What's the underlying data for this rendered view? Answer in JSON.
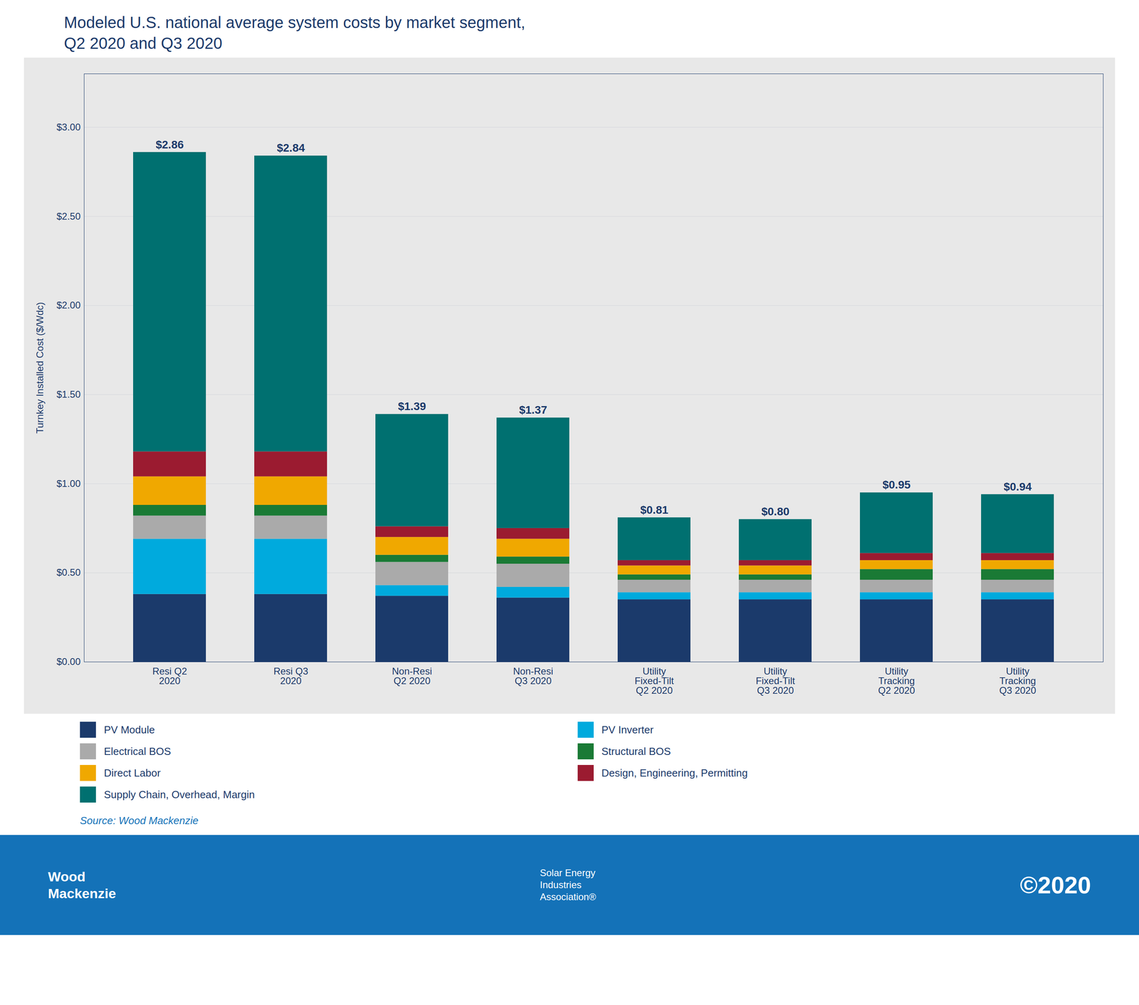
{
  "chart_data": {
    "type": "bar",
    "stacked": true,
    "title": "Modeled U.S. national average system costs by market segment,\nQ2 2020 and Q3 2020",
    "ylabel": "Turnkey Installed Cost ($/Wdc)",
    "categories": [
      "Resi Q2\n2020",
      "Resi Q3\n2020",
      "Non-Resi\nQ2 2020",
      "Non-Resi\nQ3 2020",
      "Utility\nFixed-Tilt\nQ2 2020",
      "Utility\nFixed-Tilt\nQ3 2020",
      "Utility\nTracking\nQ2 2020",
      "Utility\nTracking\nQ3 2020"
    ],
    "series": [
      {
        "name": "PV Module",
        "color": "#1b3a6b",
        "values": [
          0.38,
          0.38,
          0.37,
          0.36,
          0.35,
          0.35,
          0.35,
          0.35
        ]
      },
      {
        "name": "PV Inverter",
        "color": "#00aadd",
        "values": [
          0.31,
          0.31,
          0.06,
          0.06,
          0.04,
          0.04,
          0.04,
          0.04
        ]
      },
      {
        "name": "Electrical BOS",
        "color": "#aaaaaa",
        "values": [
          0.13,
          0.13,
          0.13,
          0.13,
          0.07,
          0.07,
          0.07,
          0.07
        ]
      },
      {
        "name": "Structural BOS",
        "color": "#1a7a35",
        "values": [
          0.06,
          0.06,
          0.04,
          0.04,
          0.03,
          0.03,
          0.06,
          0.06
        ]
      },
      {
        "name": "Direct Labor",
        "color": "#f0a800",
        "values": [
          0.16,
          0.16,
          0.1,
          0.1,
          0.05,
          0.05,
          0.05,
          0.05
        ]
      },
      {
        "name": "Design, Engineering, Permitting",
        "color": "#9b1b30",
        "values": [
          0.14,
          0.14,
          0.06,
          0.06,
          0.03,
          0.03,
          0.04,
          0.04
        ]
      },
      {
        "name": "Supply Chain, Overhead, Margin",
        "color": "#007070",
        "values": [
          1.68,
          1.66,
          0.63,
          0.62,
          0.24,
          0.23,
          0.34,
          0.33
        ]
      }
    ],
    "totals": [
      2.86,
      2.84,
      1.39,
      1.37,
      0.81,
      0.8,
      0.95,
      0.94
    ],
    "total_labels": [
      "$2.86",
      "$2.84",
      "$1.39",
      "$1.37",
      "$0.81",
      "$0.80",
      "$0.95",
      "$0.94"
    ],
    "ylim": [
      0,
      3.3
    ],
    "yticks": [
      {
        "value": 0.0,
        "label": "$0.00"
      },
      {
        "value": 0.5,
        "label": "$0.50"
      },
      {
        "value": 1.0,
        "label": "$1.00"
      },
      {
        "value": 1.5,
        "label": "$1.50"
      },
      {
        "value": 2.0,
        "label": "$2.00"
      },
      {
        "value": 2.5,
        "label": "$2.50"
      },
      {
        "value": 3.0,
        "label": "$3.00"
      }
    ],
    "grid": true,
    "legend": "bottom",
    "annotations": [
      "Source: Wood Mackenzie",
      "Wood\nMackenzie",
      "Solar Energy\nIndustries\nAssociation®",
      "©2020"
    ]
  }
}
